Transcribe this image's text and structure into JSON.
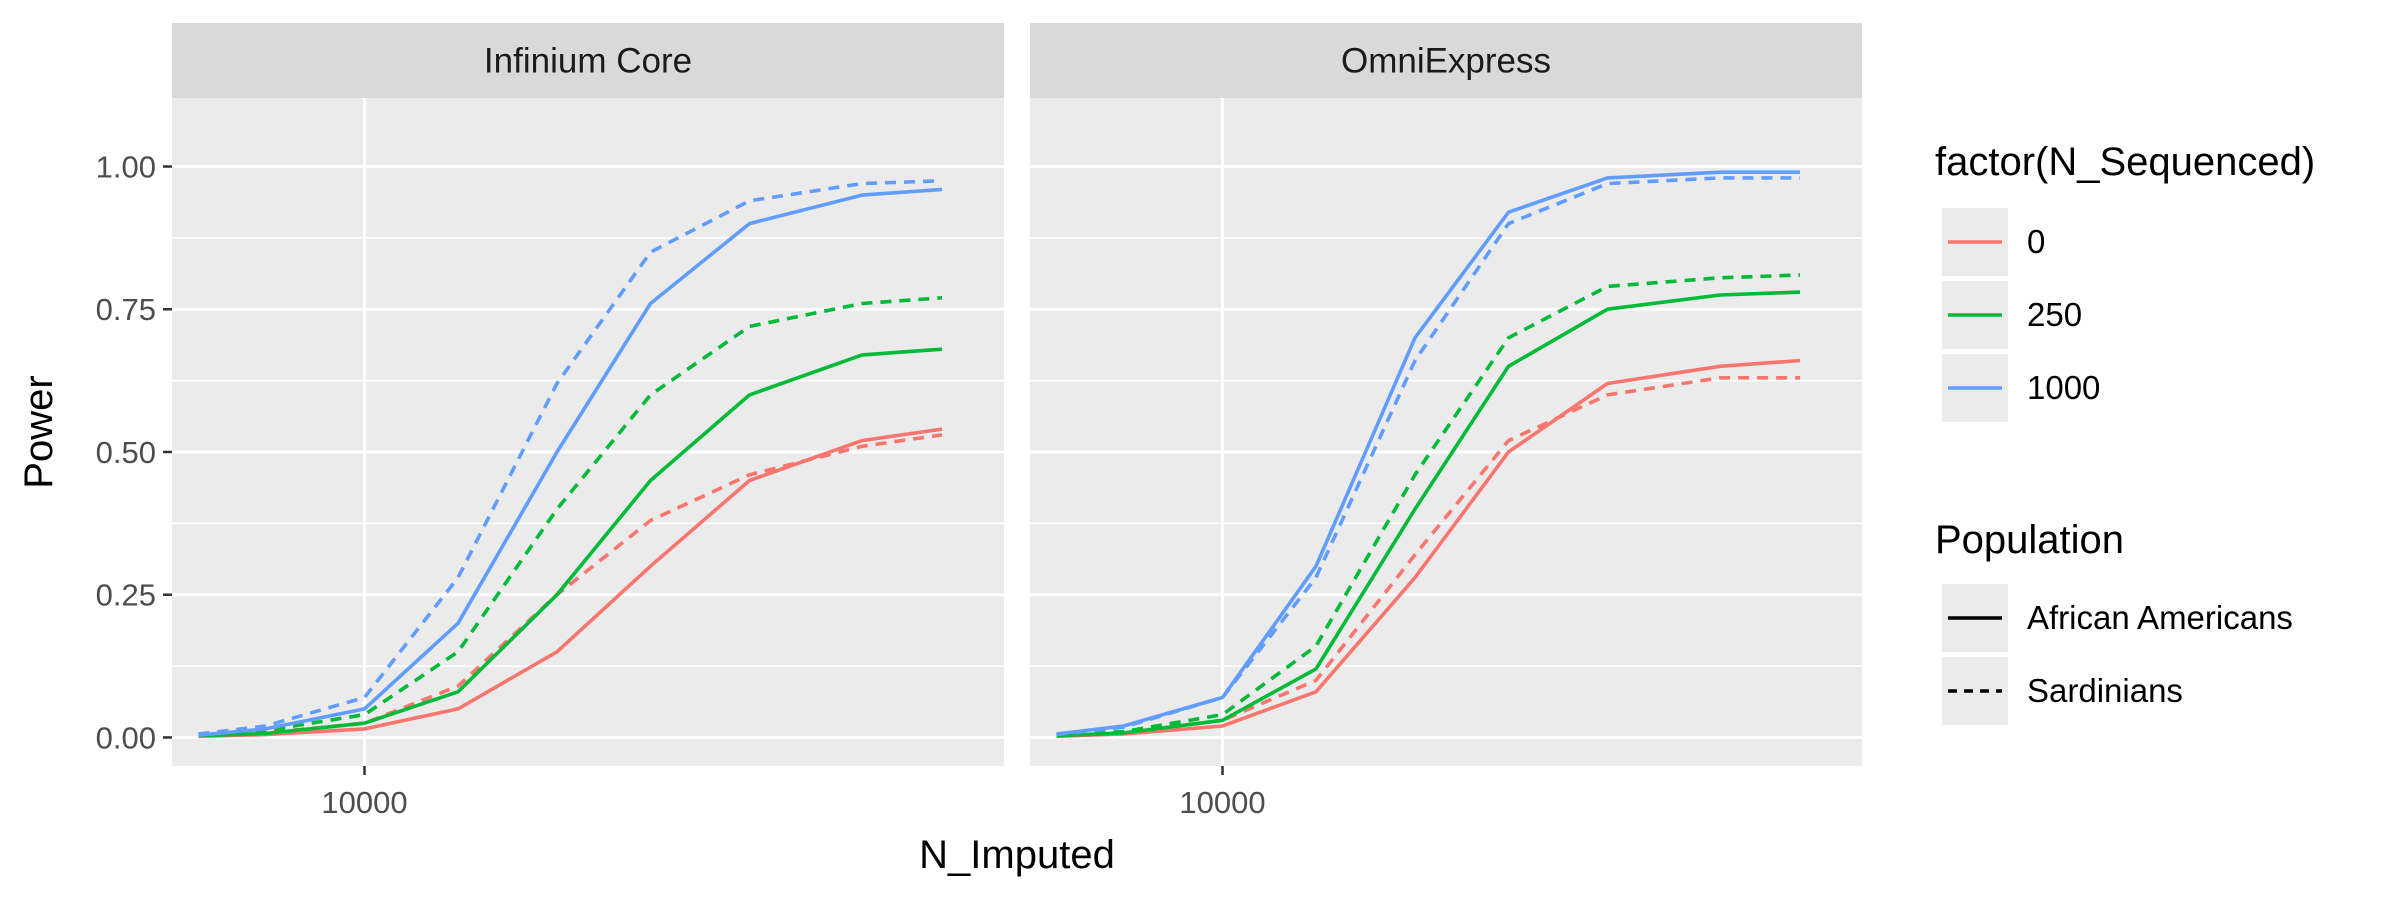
{
  "chart_data": {
    "type": "line",
    "facets": [
      "Infinium Core",
      "OmniExpress"
    ],
    "xlabel": "N_Imputed",
    "ylabel": "Power",
    "x_scale": "log10",
    "x_ticks": [
      10000
    ],
    "x_tick_labels": [
      "10000"
    ],
    "xlim": [
      5000,
      100000
    ],
    "ylim": [
      -0.05,
      1.12
    ],
    "y_ticks": [
      0,
      0.25,
      0.5,
      0.75,
      1.0
    ],
    "y_tick_labels": [
      "0.00",
      "0.25",
      "0.50",
      "0.75",
      "1.00"
    ],
    "grid": true,
    "legend_position": "right",
    "legends": [
      {
        "title": "factor(N_Sequenced)",
        "kind": "color",
        "items": [
          {
            "label": "0",
            "color": "#F8766D"
          },
          {
            "label": "250",
            "color": "#00BA38"
          },
          {
            "label": "1000",
            "color": "#619CFF"
          }
        ]
      },
      {
        "title": "Population",
        "kind": "linetype",
        "items": [
          {
            "label": "African Americans",
            "linetype": "solid"
          },
          {
            "label": "Sardinians",
            "linetype": "dashed"
          }
        ]
      }
    ],
    "x": [
      5500,
      7000,
      10000,
      14000,
      20000,
      28000,
      40000,
      60000,
      80000
    ],
    "panels": [
      {
        "facet": "Infinium Core",
        "series": [
          {
            "color_group": "0",
            "population": "African Americans",
            "color": "#F8766D",
            "linetype": "solid",
            "values": [
              0.002,
              0.005,
              0.015,
              0.05,
              0.15,
              0.3,
              0.45,
              0.52,
              0.54
            ]
          },
          {
            "color_group": "0",
            "population": "Sardinians",
            "color": "#F8766D",
            "linetype": "dashed",
            "values": [
              0.003,
              0.008,
              0.025,
              0.09,
              0.25,
              0.38,
              0.46,
              0.51,
              0.53
            ]
          },
          {
            "color_group": "250",
            "population": "African Americans",
            "color": "#00BA38",
            "linetype": "solid",
            "values": [
              0.003,
              0.007,
              0.025,
              0.08,
              0.25,
              0.45,
              0.6,
              0.67,
              0.68
            ]
          },
          {
            "color_group": "250",
            "population": "Sardinians",
            "color": "#00BA38",
            "linetype": "dashed",
            "values": [
              0.004,
              0.012,
              0.04,
              0.15,
              0.4,
              0.6,
              0.72,
              0.76,
              0.77
            ]
          },
          {
            "color_group": "1000",
            "population": "African Americans",
            "color": "#619CFF",
            "linetype": "solid",
            "values": [
              0.004,
              0.015,
              0.05,
              0.2,
              0.5,
              0.76,
              0.9,
              0.95,
              0.96
            ]
          },
          {
            "color_group": "1000",
            "population": "Sardinians",
            "color": "#619CFF",
            "linetype": "dashed",
            "values": [
              0.006,
              0.02,
              0.07,
              0.28,
              0.62,
              0.85,
              0.94,
              0.97,
              0.975
            ]
          }
        ]
      },
      {
        "facet": "OmniExpress",
        "series": [
          {
            "color_group": "0",
            "population": "African Americans",
            "color": "#F8766D",
            "linetype": "solid",
            "values": [
              0.002,
              0.006,
              0.02,
              0.08,
              0.28,
              0.5,
              0.62,
              0.65,
              0.66
            ]
          },
          {
            "color_group": "0",
            "population": "Sardinians",
            "color": "#F8766D",
            "linetype": "dashed",
            "values": [
              0.003,
              0.008,
              0.03,
              0.1,
              0.32,
              0.52,
              0.6,
              0.63,
              0.63
            ]
          },
          {
            "color_group": "250",
            "population": "African Americans",
            "color": "#00BA38",
            "linetype": "solid",
            "values": [
              0.003,
              0.008,
              0.03,
              0.12,
              0.4,
              0.65,
              0.75,
              0.775,
              0.78
            ]
          },
          {
            "color_group": "250",
            "population": "Sardinians",
            "color": "#00BA38",
            "linetype": "dashed",
            "values": [
              0.004,
              0.01,
              0.04,
              0.16,
              0.46,
              0.7,
              0.79,
              0.805,
              0.81
            ]
          },
          {
            "color_group": "1000",
            "population": "African Americans",
            "color": "#619CFF",
            "linetype": "solid",
            "values": [
              0.006,
              0.02,
              0.07,
              0.3,
              0.7,
              0.92,
              0.98,
              0.99,
              0.99
            ]
          },
          {
            "color_group": "1000",
            "population": "Sardinians",
            "color": "#619CFF",
            "linetype": "dashed",
            "values": [
              0.005,
              0.018,
              0.07,
              0.28,
              0.66,
              0.9,
              0.97,
              0.98,
              0.98
            ]
          }
        ]
      }
    ]
  }
}
